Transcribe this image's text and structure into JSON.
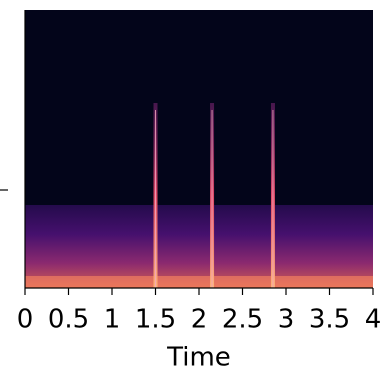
{
  "chart_data": {
    "type": "spectrogram",
    "xlabel": "Time",
    "xlim": [
      0,
      4
    ],
    "xticks": [
      0,
      0.5,
      1,
      1.5,
      2,
      2.5,
      3,
      3.5,
      4
    ],
    "events": [
      1.5,
      2.15,
      2.85
    ],
    "color": "#f5a9c0"
  }
}
